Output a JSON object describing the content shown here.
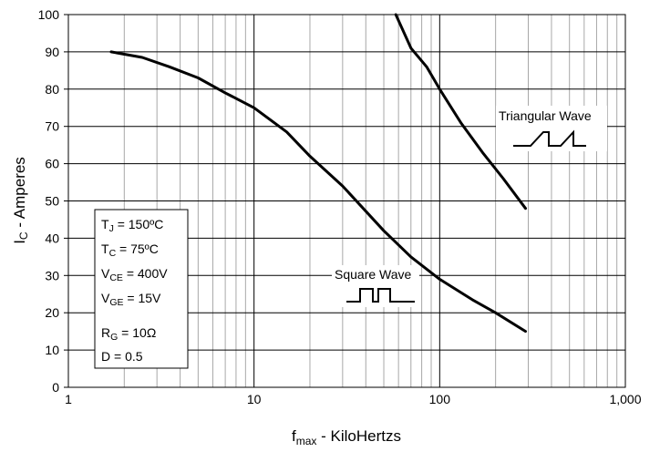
{
  "chart_data": {
    "type": "line",
    "x_scale": "log",
    "xlim": [
      1,
      1000
    ],
    "ylim": [
      0,
      100
    ],
    "xlabel": {
      "main": "f",
      "sub": "max",
      "rest": " - KiloHertzs"
    },
    "ylabel": {
      "main": "I",
      "sub": "C",
      "rest": " - Amperes"
    },
    "x_ticks": [
      {
        "value": 1,
        "label": "1"
      },
      {
        "value": 10,
        "label": "10"
      },
      {
        "value": 100,
        "label": "100"
      },
      {
        "value": 1000,
        "label": "1,000"
      }
    ],
    "y_ticks": [
      0,
      10,
      20,
      30,
      40,
      50,
      60,
      70,
      80,
      90,
      100
    ],
    "grid": true,
    "series": [
      {
        "name": "Square Wave",
        "points": [
          [
            1.7,
            90
          ],
          [
            2.5,
            88.5
          ],
          [
            3.5,
            86
          ],
          [
            5,
            83
          ],
          [
            7,
            79
          ],
          [
            10,
            75
          ],
          [
            15,
            68.5
          ],
          [
            20,
            62
          ],
          [
            30,
            54
          ],
          [
            50,
            42
          ],
          [
            70,
            35
          ],
          [
            100,
            29
          ],
          [
            150,
            23.5
          ],
          [
            200,
            20
          ],
          [
            290,
            15
          ]
        ]
      },
      {
        "name": "Triangular Wave",
        "points": [
          [
            58,
            100
          ],
          [
            70,
            91
          ],
          [
            85,
            86
          ],
          [
            100,
            80
          ],
          [
            130,
            71
          ],
          [
            170,
            63
          ],
          [
            220,
            56
          ],
          [
            290,
            48
          ]
        ]
      }
    ],
    "annotations": {
      "square_label": "Square Wave",
      "triangular_label": "Triangular Wave"
    },
    "conditions": [
      {
        "main": "T",
        "sub": "J",
        "rest": " = 150ºC"
      },
      {
        "main": "T",
        "sub": "C",
        "rest": " = 75ºC"
      },
      {
        "main": "V",
        "sub": "CE",
        "rest": " = 400V"
      },
      {
        "main": "V",
        "sub": "GE",
        "rest": " = 15V"
      },
      {
        "main": "R",
        "sub": "G",
        "rest": " = 10Ω"
      },
      {
        "main": "D = 0.5",
        "sub": "",
        "rest": ""
      }
    ]
  }
}
